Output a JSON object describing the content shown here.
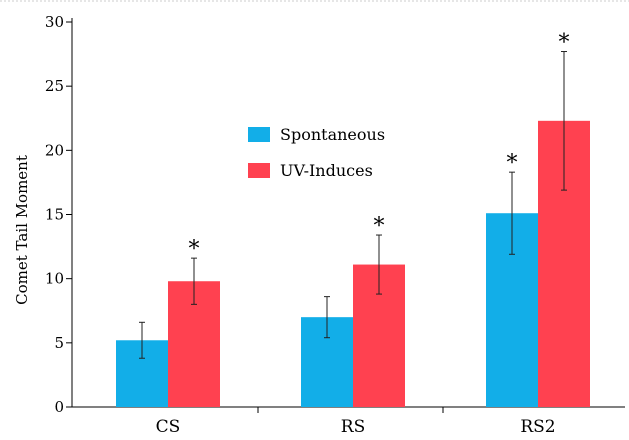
{
  "chart_data": {
    "type": "bar",
    "ylabel": "Comet Tail Moment",
    "xlabel": "",
    "ylim": [
      0,
      30
    ],
    "yticks": [
      0,
      5,
      10,
      15,
      20,
      25,
      30
    ],
    "categories": [
      "CS",
      "RS",
      "RS2"
    ],
    "legend_position": "center",
    "grid": false,
    "series": [
      {
        "name": "Spontaneous",
        "color": "#12aee8",
        "values": [
          5.2,
          7.0,
          15.1
        ],
        "error": [
          1.4,
          1.6,
          3.2
        ],
        "significance": [
          "",
          "",
          "*"
        ]
      },
      {
        "name": "UV-Induces",
        "color": "#ff4150",
        "values": [
          9.8,
          11.1,
          22.3
        ],
        "error": [
          1.8,
          2.3,
          5.4
        ],
        "significance": [
          "*",
          "*",
          "*"
        ]
      }
    ]
  }
}
